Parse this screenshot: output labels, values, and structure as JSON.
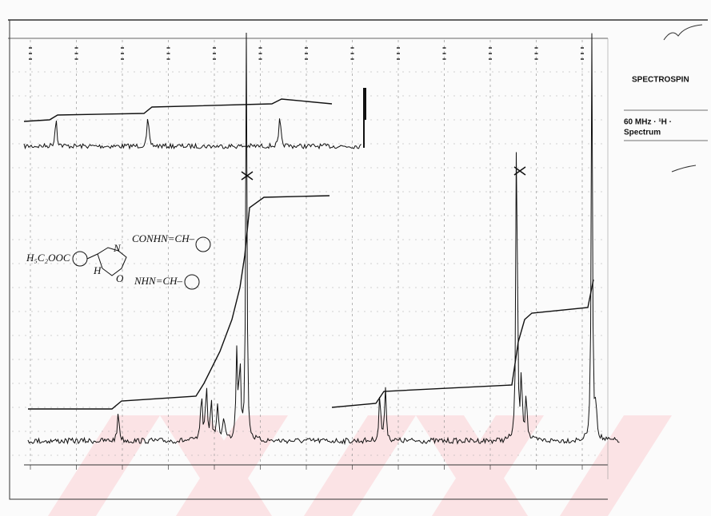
{
  "side_panel": {
    "brand": "SPECTROSPIN",
    "spectrum_line1": "60 MHz · ¹H ·",
    "spectrum_line2": "Spectrum"
  },
  "structure": {
    "ester": "H₅C₂OOC",
    "amide_top": "CONHN=CH–",
    "amide_bottom": "NHN=CH–",
    "ring_n": "N",
    "ring_o": "O",
    "ring_h": "H"
  }
}
